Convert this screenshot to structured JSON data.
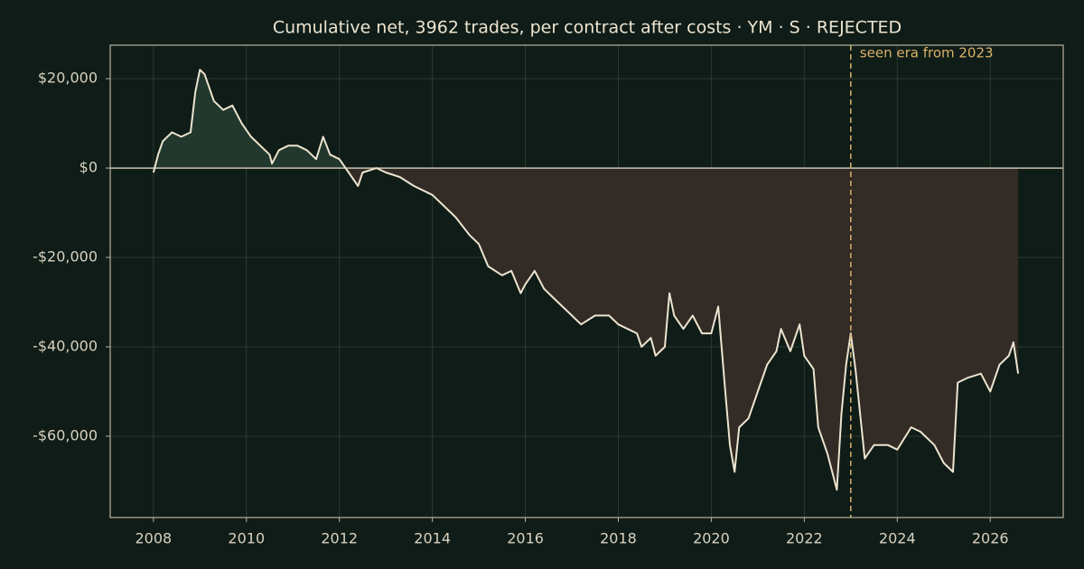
{
  "chart_data": {
    "type": "line",
    "title": "Cumulative net, 3962 trades, per contract after costs  ·  YM · S · REJECTED",
    "x": [
      2008.0,
      2008.1,
      2008.2,
      2008.4,
      2008.6,
      2008.8,
      2008.9,
      2009.0,
      2009.1,
      2009.3,
      2009.5,
      2009.7,
      2009.9,
      2010.1,
      2010.3,
      2010.5,
      2010.55,
      2010.7,
      2010.9,
      2011.1,
      2011.3,
      2011.5,
      2011.65,
      2011.8,
      2012.0,
      2012.2,
      2012.4,
      2012.5,
      2012.8,
      2013.0,
      2013.3,
      2013.6,
      2014.0,
      2014.3,
      2014.5,
      2014.8,
      2015.0,
      2015.2,
      2015.5,
      2015.7,
      2015.9,
      2016.0,
      2016.2,
      2016.4,
      2016.6,
      2016.9,
      2017.2,
      2017.5,
      2017.8,
      2018.0,
      2018.2,
      2018.4,
      2018.5,
      2018.7,
      2018.8,
      2019.0,
      2019.1,
      2019.2,
      2019.4,
      2019.6,
      2019.8,
      2020.0,
      2020.15,
      2020.3,
      2020.4,
      2020.5,
      2020.6,
      2020.8,
      2021.0,
      2021.2,
      2021.4,
      2021.5,
      2021.7,
      2021.9,
      2022.0,
      2022.2,
      2022.3,
      2022.5,
      2022.7,
      2022.8,
      2022.9,
      2023.0,
      2023.1,
      2023.3,
      2023.5,
      2023.8,
      2024.0,
      2024.3,
      2024.5,
      2024.8,
      2025.0,
      2025.2,
      2025.3,
      2025.5,
      2025.8,
      2026.0,
      2026.2,
      2026.4,
      2026.5,
      2026.6
    ],
    "series": [
      {
        "name": "Cumulative net",
        "color": "#ece4d0",
        "values": [
          -1000,
          3000,
          6000,
          8000,
          7000,
          8000,
          17000,
          22000,
          21000,
          15000,
          13000,
          14000,
          10000,
          7000,
          5000,
          3000,
          1000,
          4000,
          5000,
          5000,
          4000,
          2000,
          7000,
          3000,
          2000,
          -1000,
          -4000,
          -1000,
          0,
          -1000,
          -2000,
          -4000,
          -6000,
          -9000,
          -11000,
          -15000,
          -17000,
          -22000,
          -24000,
          -23000,
          -28000,
          -26000,
          -23000,
          -27000,
          -29000,
          -32000,
          -35000,
          -33000,
          -33000,
          -35000,
          -36000,
          -37000,
          -40000,
          -38000,
          -42000,
          -40000,
          -28000,
          -33000,
          -36000,
          -33000,
          -37000,
          -37000,
          -31000,
          -50000,
          -62000,
          -68000,
          -58000,
          -56000,
          -50000,
          -44000,
          -41000,
          -36000,
          -41000,
          -35000,
          -42000,
          -45000,
          -58000,
          -64000,
          -72000,
          -55000,
          -44000,
          -37000,
          -45000,
          -65000,
          -62000,
          -62000,
          -63000,
          -58000,
          -59000,
          -62000,
          -66000,
          -68000,
          -48000,
          -47000,
          -46000,
          -50000,
          -44000,
          -42000,
          -39000,
          -46000
        ]
      }
    ],
    "positive_fill": "#22382e",
    "negative_fill": "#332b25",
    "xlim": [
      2007.07,
      2027.57
    ],
    "xticks": [
      2008,
      2010,
      2012,
      2014,
      2016,
      2018,
      2020,
      2022,
      2024,
      2026
    ],
    "ylim": [
      -78200,
      27500
    ],
    "yticks": [
      {
        "value": -60000,
        "label": "-$60,000"
      },
      {
        "value": -40000,
        "label": "-$40,000"
      },
      {
        "value": -20000,
        "label": "-$20,000"
      },
      {
        "value": 0,
        "label": "$0"
      },
      {
        "value": 20000,
        "label": "$20,000"
      }
    ],
    "grid": true,
    "vline": {
      "x": 2023,
      "label": "seen era from 2023",
      "color": "#d9b26a"
    }
  }
}
